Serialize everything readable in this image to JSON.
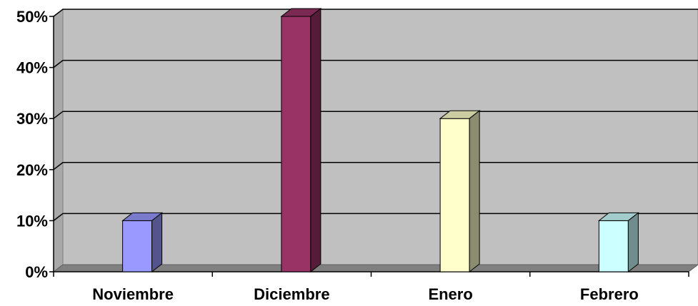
{
  "chart_data": {
    "type": "bar",
    "categories": [
      "Noviembre",
      "Diciembre",
      "Enero",
      "Febrero"
    ],
    "values": [
      10,
      50,
      30,
      10
    ],
    "ylim": [
      0,
      50
    ],
    "yticks": [
      "0%",
      "10%",
      "20%",
      "30%",
      "40%",
      "50%"
    ],
    "grid": true,
    "bar_colors": [
      "#9999ff",
      "#993366",
      "#ffffcc",
      "#ccffff"
    ],
    "wall_color": "#c0c0c0"
  }
}
